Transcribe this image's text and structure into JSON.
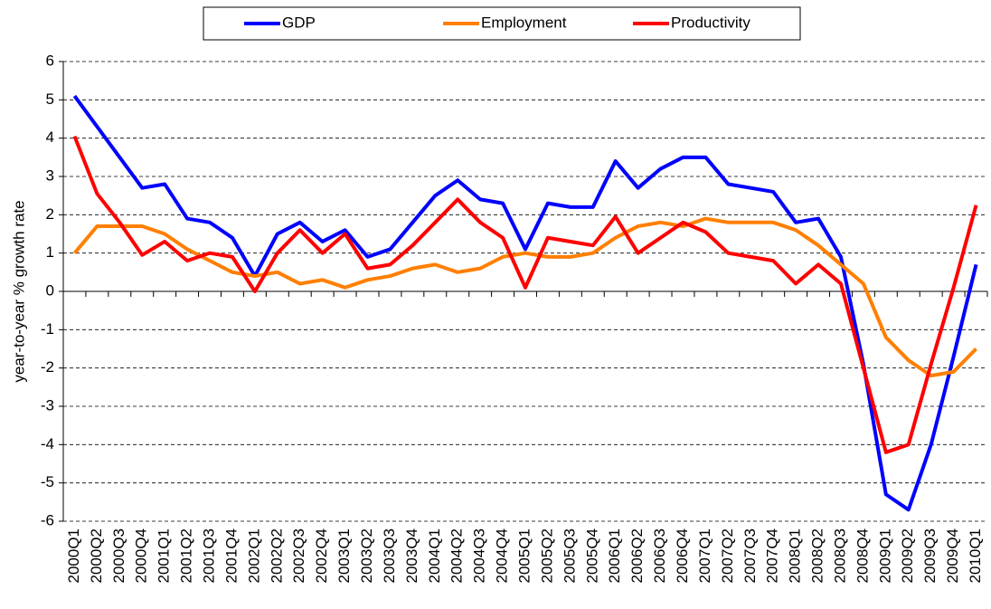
{
  "chart_data": {
    "type": "line",
    "y_label": "year-to-year % growth rate",
    "categories": [
      "2000Q1",
      "2000Q2",
      "2000Q3",
      "2000Q4",
      "2001Q1",
      "2001Q2",
      "2001Q3",
      "2001Q4",
      "2002Q1",
      "2002Q2",
      "2002Q3",
      "2002Q4",
      "2003Q1",
      "2003Q2",
      "2003Q3",
      "2003Q4",
      "2004Q1",
      "2004Q2",
      "2004Q3",
      "2004Q4",
      "2005Q1",
      "2005Q2",
      "2005Q3",
      "2005Q4",
      "2006Q1",
      "2006Q2",
      "2006Q3",
      "2006Q4",
      "2007Q1",
      "2007Q2",
      "2007Q3",
      "2007Q4",
      "2008Q1",
      "2008Q2",
      "2008Q3",
      "2008Q4",
      "2009Q1",
      "2009Q2",
      "2009Q3",
      "2009Q4",
      "2010Q1"
    ],
    "series": [
      {
        "name": "GDP",
        "color": "#0000ff",
        "values": [
          5.1,
          4.3,
          3.5,
          2.7,
          2.8,
          1.9,
          1.8,
          1.4,
          0.4,
          1.5,
          1.8,
          1.3,
          1.6,
          0.9,
          1.1,
          1.8,
          2.5,
          2.9,
          2.4,
          2.3,
          1.1,
          2.3,
          2.2,
          2.2,
          3.4,
          2.7,
          3.2,
          3.5,
          3.5,
          2.8,
          2.7,
          2.6,
          1.8,
          1.9,
          0.9,
          -1.9,
          -5.3,
          -5.7,
          -4.0,
          -1.7,
          0.7
        ]
      },
      {
        "name": "Employment",
        "color": "#ff7f00",
        "values": [
          1.0,
          1.7,
          1.7,
          1.7,
          1.5,
          1.1,
          0.8,
          0.5,
          0.4,
          0.5,
          0.2,
          0.3,
          0.1,
          0.3,
          0.4,
          0.6,
          0.7,
          0.5,
          0.6,
          0.9,
          1.0,
          0.9,
          0.9,
          1.0,
          1.4,
          1.7,
          1.8,
          1.7,
          1.9,
          1.8,
          1.8,
          1.8,
          1.6,
          1.2,
          0.7,
          0.2,
          -1.2,
          -1.8,
          -2.2,
          -2.1,
          -1.5
        ]
      },
      {
        "name": "Productivity",
        "color": "#ff0000",
        "values": [
          4.05,
          2.55,
          1.8,
          0.95,
          1.3,
          0.8,
          1.0,
          0.9,
          0.0,
          1.0,
          1.6,
          1.0,
          1.5,
          0.6,
          0.7,
          1.2,
          1.8,
          2.4,
          1.8,
          1.4,
          0.1,
          1.4,
          1.3,
          1.2,
          1.95,
          1.0,
          1.4,
          1.8,
          1.55,
          1.0,
          0.9,
          0.8,
          0.2,
          0.7,
          0.2,
          -2.0,
          -4.2,
          -4.0,
          -1.9,
          0.1,
          2.25
        ]
      }
    ],
    "ylim": [
      -6,
      6
    ],
    "yticks": [
      -6,
      -5,
      -4,
      -3,
      -2,
      -1,
      0,
      1,
      2,
      3,
      4,
      5,
      6
    ],
    "grid": true,
    "legend": "top"
  }
}
